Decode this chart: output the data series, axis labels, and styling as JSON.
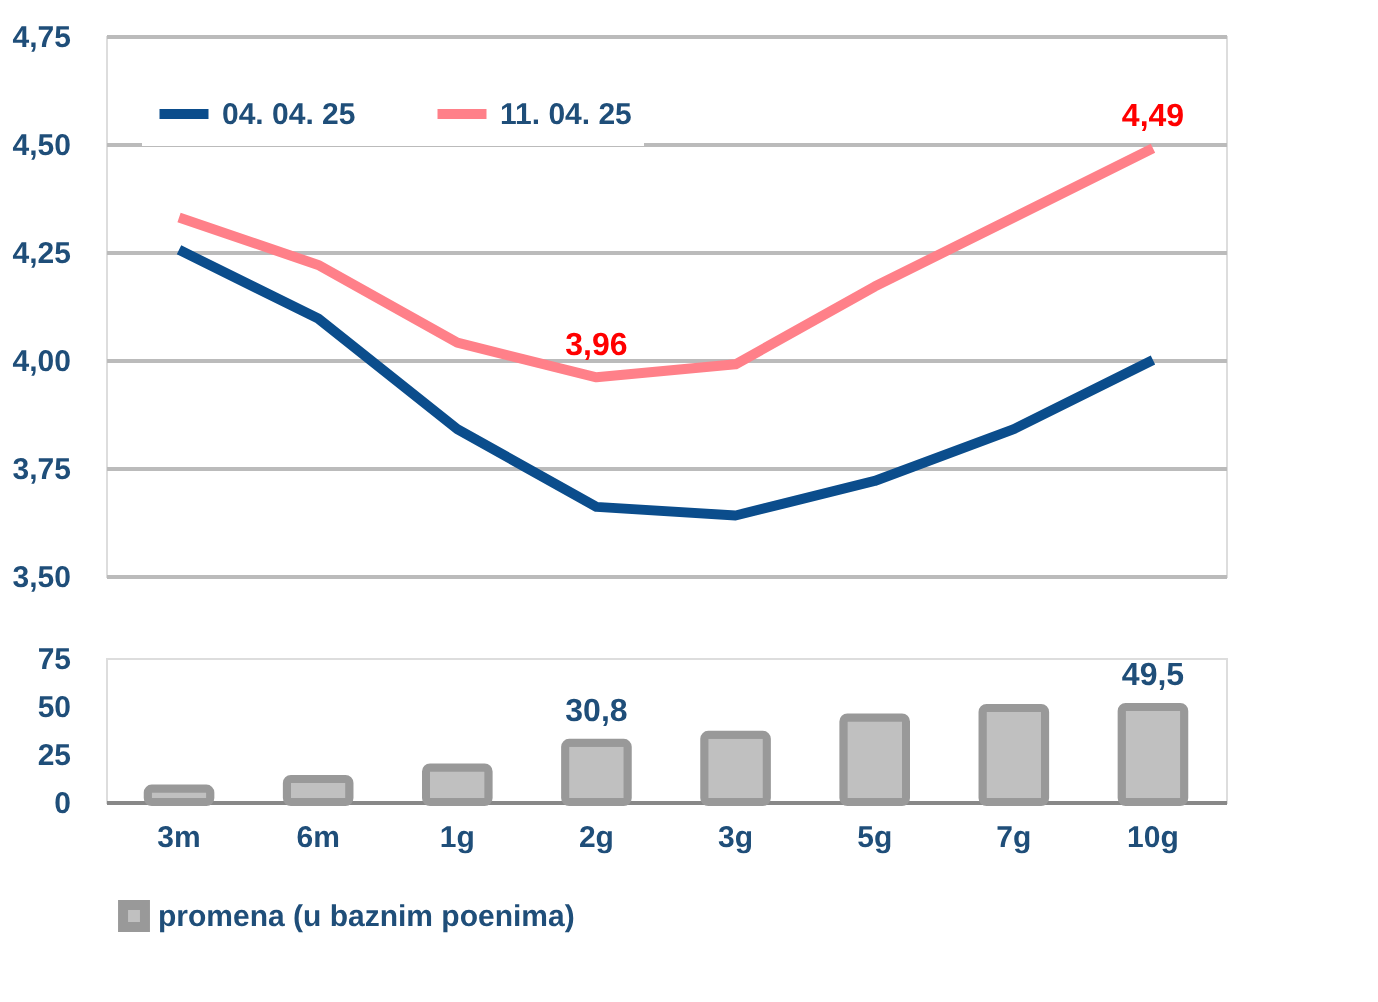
{
  "chart_data": [
    {
      "type": "line",
      "categories": [
        "3m",
        "6m",
        "1g",
        "2g",
        "3g",
        "5g",
        "7g",
        "10g"
      ],
      "series": [
        {
          "name": "04. 04. 25",
          "color": "#0b4d8c",
          "values": [
            4.255,
            4.096,
            3.84,
            3.66,
            3.64,
            3.72,
            3.84,
            4.0
          ]
        },
        {
          "name": "11. 04. 25",
          "color": "#ff8089",
          "values": [
            4.33,
            4.22,
            4.04,
            3.96,
            3.99,
            4.17,
            4.33,
            4.49
          ],
          "value_labels": [
            null,
            null,
            null,
            "3,96",
            null,
            null,
            null,
            "4,49"
          ]
        }
      ],
      "ylim": [
        3.5,
        4.75
      ],
      "yticks": [
        {
          "value": 3.5,
          "label": "3,50"
        },
        {
          "value": 3.75,
          "label": "3,75"
        },
        {
          "value": 4.0,
          "label": "4,00"
        },
        {
          "value": 4.25,
          "label": "4,25"
        },
        {
          "value": 4.5,
          "label": "4,50"
        },
        {
          "value": 4.75,
          "label": "4,75"
        }
      ],
      "grid": "y",
      "legend": "top left",
      "tick_labels": "y",
      "marker": "none",
      "line_style": "solid"
    },
    {
      "type": "bar",
      "categories": [
        "3m",
        "6m",
        "1g",
        "2g",
        "3g",
        "5g",
        "7g",
        "10g"
      ],
      "series": [
        {
          "name": "promena (u baznim poenima)",
          "color": "#c0c0c0",
          "values": [
            7,
            12,
            18,
            30.8,
            35,
            44,
            49,
            49.5
          ],
          "value_labels": [
            null,
            null,
            null,
            "30,8",
            null,
            null,
            null,
            "49,5"
          ]
        }
      ],
      "ylim": [
        0,
        75
      ],
      "yticks": [
        0,
        25,
        50,
        75
      ],
      "grid": false,
      "legend": "bottom"
    }
  ]
}
